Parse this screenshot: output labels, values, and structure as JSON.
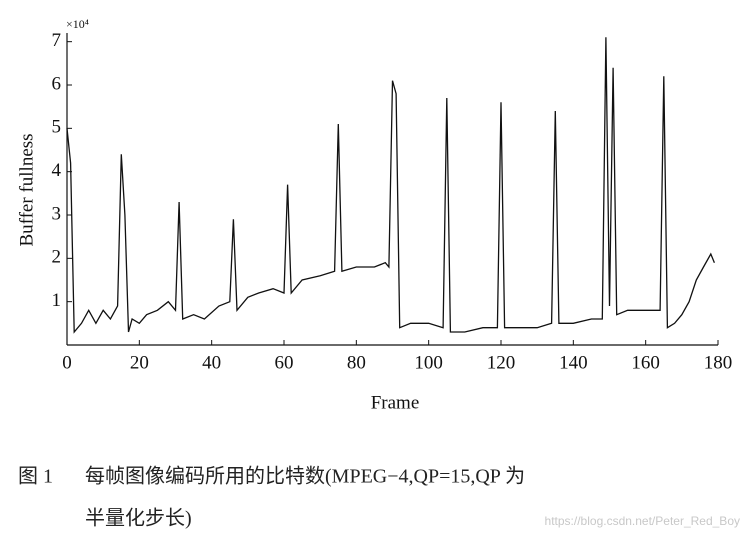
{
  "chart_data": {
    "type": "line",
    "y_multiplier": "×10⁴",
    "ylabel": "Buffer fullness",
    "xlabel": "Frame",
    "color": "#111111",
    "x": [
      0,
      1,
      2,
      4,
      6,
      8,
      10,
      12,
      14,
      15,
      16,
      17,
      18,
      20,
      22,
      25,
      28,
      30,
      31,
      32,
      35,
      38,
      42,
      45,
      46,
      47,
      50,
      53,
      57,
      60,
      61,
      62,
      65,
      70,
      74,
      75,
      76,
      80,
      85,
      88,
      89,
      90,
      91,
      92,
      95,
      100,
      104,
      105,
      106,
      110,
      115,
      119,
      120,
      121,
      125,
      130,
      134,
      135,
      136,
      140,
      145,
      148,
      149,
      150,
      151,
      152,
      155,
      160,
      164,
      165,
      166,
      168,
      170,
      172,
      174,
      176,
      178,
      179
    ],
    "values": [
      5.0,
      4.2,
      0.3,
      0.5,
      0.8,
      0.5,
      0.8,
      0.6,
      0.9,
      4.4,
      3.0,
      0.3,
      0.6,
      0.5,
      0.7,
      0.8,
      1.0,
      0.8,
      3.3,
      0.6,
      0.7,
      0.6,
      0.9,
      1.0,
      2.9,
      0.8,
      1.1,
      1.2,
      1.3,
      1.2,
      3.7,
      1.2,
      1.5,
      1.6,
      1.7,
      5.1,
      1.7,
      1.8,
      1.8,
      1.9,
      1.8,
      6.1,
      5.8,
      0.4,
      0.5,
      0.5,
      0.4,
      5.7,
      0.3,
      0.3,
      0.4,
      0.4,
      5.6,
      0.4,
      0.4,
      0.4,
      0.5,
      5.4,
      0.5,
      0.5,
      0.6,
      0.6,
      7.1,
      0.9,
      6.4,
      0.7,
      0.8,
      0.8,
      0.8,
      6.2,
      0.4,
      0.5,
      0.7,
      1.0,
      1.5,
      1.8,
      2.1,
      1.9
    ],
    "xlim": [
      0,
      180
    ],
    "xticks": [
      0,
      20,
      40,
      60,
      80,
      100,
      120,
      140,
      160,
      180
    ],
    "ylim": [
      0,
      7.2
    ],
    "yticks": [
      1,
      2,
      3,
      4,
      5,
      6,
      7
    ],
    "grid": false
  },
  "caption": {
    "label": "图 1",
    "lines": [
      "每帧图像编码所用的比特数(MPEG−4,QP=15,QP 为",
      "半量化步长)"
    ]
  },
  "watermark": "https://blog.csdn.net/Peter_Red_Boy"
}
